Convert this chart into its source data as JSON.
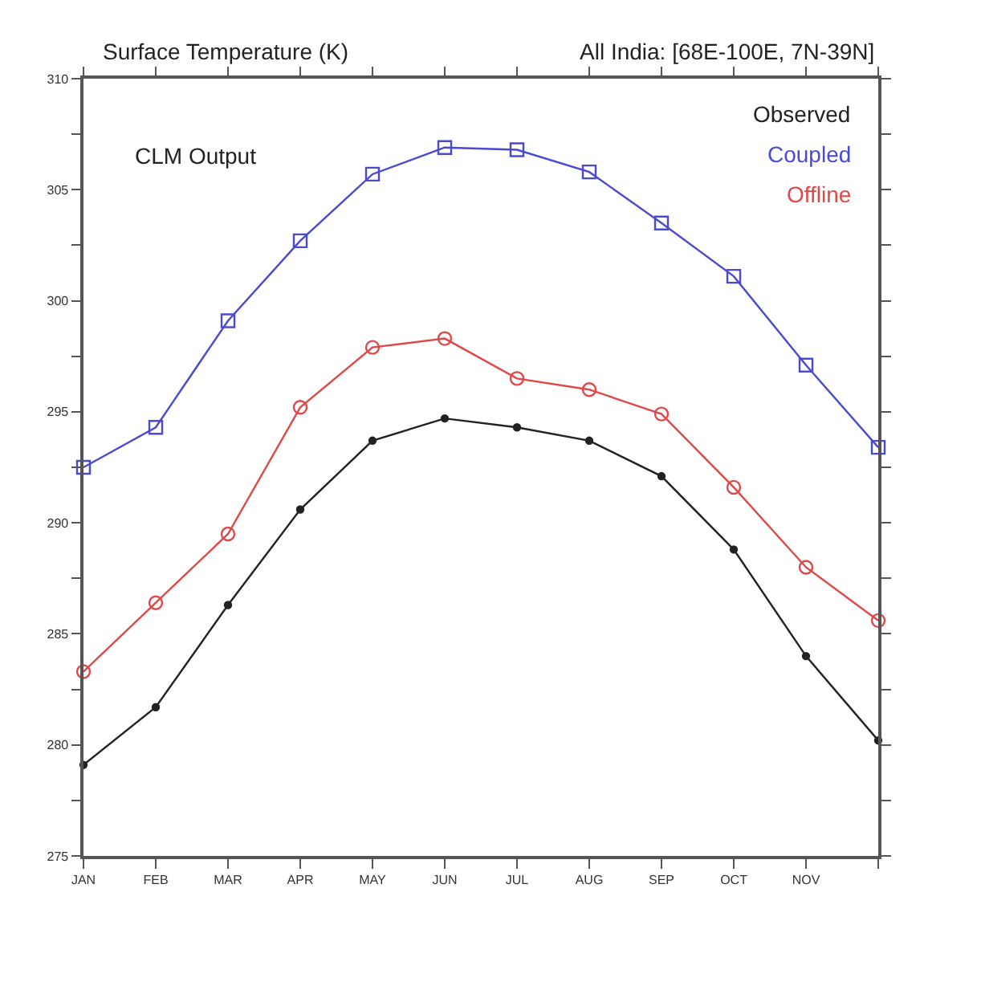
{
  "chart_data": {
    "type": "line",
    "title": "Surface Temperature (K)",
    "subtitle": "All India: [68E-100E, 7N-39N]",
    "annotations": [
      "CLM Output"
    ],
    "categories": [
      "JAN",
      "FEB",
      "MAR",
      "APR",
      "MAY",
      "JUN",
      "JUL",
      "AUG",
      "SEP",
      "OCT",
      "NOV",
      null
    ],
    "ylim": [
      275,
      310
    ],
    "yticks": [
      275,
      {
        "value": 277.5,
        "label": null
      },
      280,
      {
        "value": 282.5,
        "label": null
      },
      285,
      {
        "value": 287.5,
        "label": null
      },
      290,
      {
        "value": 292.5,
        "label": null
      },
      295,
      {
        "value": 297.5,
        "label": null
      },
      300,
      {
        "value": 302.5,
        "label": null
      },
      305,
      {
        "value": 307.5,
        "label": null
      },
      310
    ],
    "legend": "top right",
    "line_style": "solid",
    "series": [
      {
        "name": "Observed",
        "color": "#222222",
        "marker": "circle",
        "values": [
          279.1,
          281.7,
          286.3,
          290.6,
          293.7,
          294.7,
          294.3,
          293.7,
          292.1,
          288.8,
          284.0,
          280.2
        ]
      },
      {
        "name": "Coupled",
        "color": "#4a4ad0",
        "marker": "square",
        "values": [
          292.5,
          294.3,
          299.1,
          302.7,
          305.7,
          306.9,
          306.8,
          305.8,
          303.5,
          301.1,
          297.1,
          293.4
        ]
      },
      {
        "name": "Offline",
        "color": "#e04848",
        "marker": "circle",
        "values": [
          283.3,
          286.4,
          289.5,
          295.2,
          297.9,
          298.3,
          296.5,
          296.0,
          294.9,
          291.6,
          288.0,
          285.6
        ]
      }
    ]
  }
}
